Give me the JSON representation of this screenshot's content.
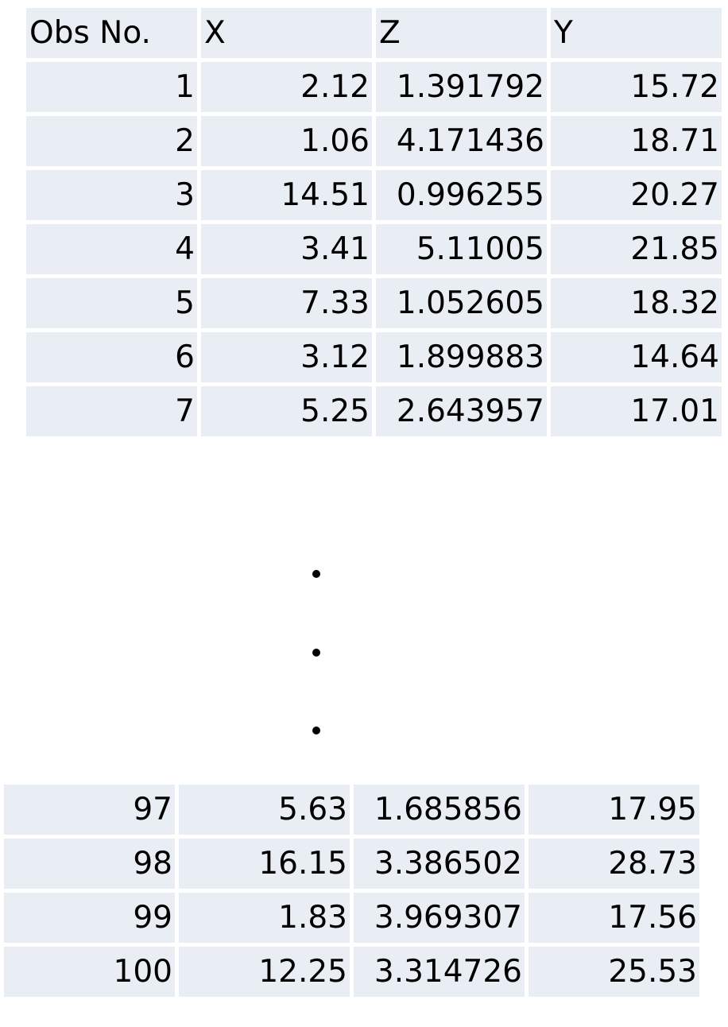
{
  "columns": [
    "Obs No.",
    "X",
    "Z",
    "Y"
  ],
  "top_rows": [
    [
      "1",
      "2.12",
      "1.391792",
      "15.72"
    ],
    [
      "2",
      "1.06",
      "4.171436",
      "18.71"
    ],
    [
      "3",
      "14.51",
      "0.996255",
      "20.27"
    ],
    [
      "4",
      "3.41",
      "5.11005",
      "21.85"
    ],
    [
      "5",
      "7.33",
      "1.052605",
      "18.32"
    ],
    [
      "6",
      "3.12",
      "1.899883",
      "14.64"
    ],
    [
      "7",
      "5.25",
      "2.643957",
      "17.01"
    ]
  ],
  "bottom_rows": [
    [
      "97",
      "5.63",
      "1.685856",
      "17.95"
    ],
    [
      "98",
      "16.15",
      "3.386502",
      "28.73"
    ],
    [
      "99",
      "1.83",
      "3.969307",
      "17.56"
    ],
    [
      "100",
      "12.25",
      "3.314726",
      "25.53"
    ]
  ]
}
